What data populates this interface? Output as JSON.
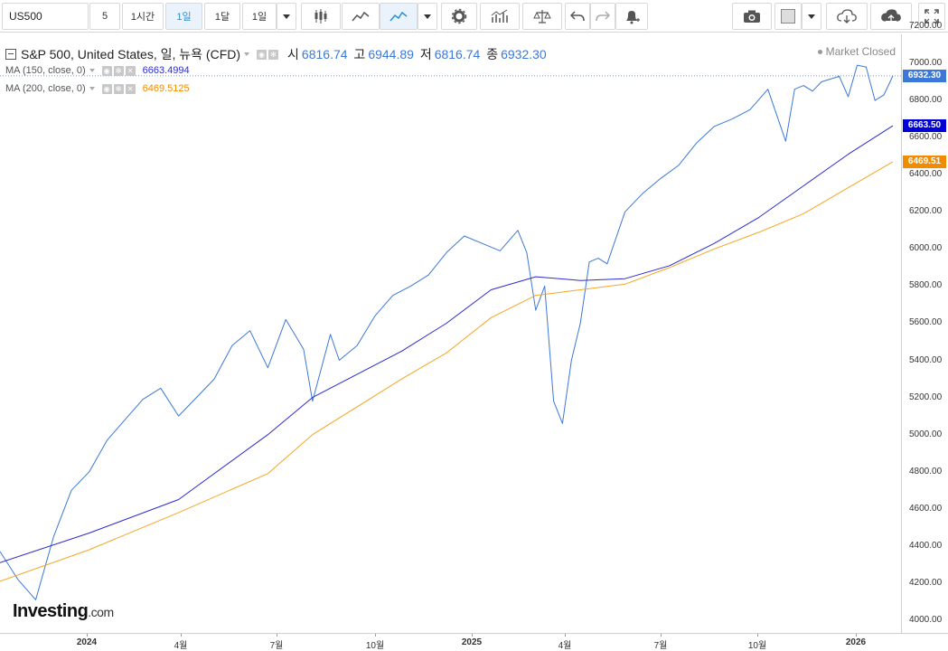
{
  "toolbar": {
    "symbol": "US500",
    "interval_5": "5",
    "interval_1h": "1시간",
    "interval_1d": "1일",
    "interval_1mo": "1달",
    "interval_menu": "1일"
  },
  "legend": {
    "title": "S&P 500, United States, 일, 뉴욕 (CFD)",
    "open_label": "시",
    "open_value": "6816.74",
    "high_label": "고",
    "high_value": "6944.89",
    "low_label": "저",
    "low_value": "6816.74",
    "close_label": "종",
    "close_value": "6932.30",
    "market_status": "Market Closed",
    "ma150_label": "MA (150, close, 0)",
    "ma150_value": "6663.4994",
    "ma200_label": "MA (200, close, 0)",
    "ma200_value": "6469.5125"
  },
  "colors": {
    "price_line": "#3c78d8",
    "ma150": "#2b2bd0",
    "ma200": "#f5a623",
    "price_badge": "#3c78d8",
    "ma150_badge": "#0000d8",
    "ma200_badge": "#f08c00"
  },
  "watermark": {
    "brand": "Investing",
    "suffix": ".com"
  },
  "price_axis": {
    "ticks": [
      "7200.00",
      "7000.00",
      "6800.00",
      "6600.00",
      "6400.00",
      "6200.00",
      "6000.00",
      "5800.00",
      "5600.00",
      "5400.00",
      "5200.00",
      "5000.00",
      "4800.00",
      "4600.00",
      "4400.00",
      "4200.00",
      "4000.00"
    ],
    "last_price": "6932.30",
    "ma150_badge": "6663.50",
    "ma200_badge": "6469.51"
  },
  "time_axis": {
    "labels": [
      "2024",
      "4월",
      "7월",
      "10월",
      "2025",
      "4월",
      "7월",
      "10월",
      "2026"
    ]
  },
  "icons": [
    "chevron-down-icon",
    "candlestick-icon",
    "area-chart-icon",
    "line-chart-icon",
    "gear-icon",
    "indicators-icon",
    "compare-scale-icon",
    "undo-icon",
    "redo-icon",
    "alert-bell-icon",
    "camera-icon",
    "color-box-icon",
    "cloud-download-icon",
    "cloud-upload-icon",
    "fullscreen-icon"
  ],
  "chart_data": {
    "type": "line",
    "title": "S&P 500, United States, 일, 뉴욕 (CFD)",
    "ylim": [
      4000,
      7200
    ],
    "x_labels": [
      "2024",
      "4월",
      "7월",
      "10월",
      "2025",
      "4월",
      "7월",
      "10월",
      "2026"
    ],
    "series": [
      {
        "name": "S&P 500",
        "x": [
          0.0,
          0.02,
          0.04,
          0.06,
          0.08,
          0.1,
          0.12,
          0.14,
          0.16,
          0.18,
          0.2,
          0.22,
          0.24,
          0.26,
          0.28,
          0.3,
          0.32,
          0.34,
          0.35,
          0.37,
          0.38,
          0.4,
          0.42,
          0.44,
          0.46,
          0.48,
          0.5,
          0.52,
          0.54,
          0.56,
          0.58,
          0.59,
          0.6,
          0.61,
          0.62,
          0.63,
          0.64,
          0.65,
          0.66,
          0.67,
          0.68,
          0.7,
          0.72,
          0.74,
          0.76,
          0.78,
          0.8,
          0.82,
          0.84,
          0.86,
          0.88,
          0.89,
          0.9,
          0.91,
          0.92,
          0.94,
          0.95,
          0.96,
          0.97,
          0.98,
          0.99,
          1.0
        ],
        "values": [
          4370,
          4220,
          4110,
          4450,
          4700,
          4800,
          4970,
          5080,
          5190,
          5250,
          5100,
          5200,
          5300,
          5480,
          5560,
          5360,
          5620,
          5460,
          5180,
          5540,
          5400,
          5480,
          5640,
          5750,
          5800,
          5860,
          5980,
          6070,
          6030,
          5990,
          6100,
          5980,
          5670,
          5800,
          5180,
          5060,
          5400,
          5600,
          5930,
          5950,
          5920,
          6200,
          6300,
          6380,
          6450,
          6570,
          6660,
          6700,
          6750,
          6860,
          6580,
          6860,
          6880,
          6850,
          6900,
          6930,
          6820,
          6990,
          6980,
          6800,
          6830,
          6932.3
        ]
      },
      {
        "name": "MA (150, close, 0)",
        "x": [
          0.0,
          0.1,
          0.2,
          0.3,
          0.35,
          0.45,
          0.5,
          0.55,
          0.6,
          0.65,
          0.7,
          0.75,
          0.8,
          0.85,
          0.9,
          0.95,
          1.0
        ],
        "values": [
          4310,
          4470,
          4650,
          5000,
          5200,
          5450,
          5600,
          5780,
          5850,
          5830,
          5840,
          5910,
          6030,
          6170,
          6340,
          6510,
          6663.5
        ]
      },
      {
        "name": "MA (200, close, 0)",
        "x": [
          0.0,
          0.1,
          0.2,
          0.3,
          0.35,
          0.45,
          0.5,
          0.55,
          0.6,
          0.65,
          0.7,
          0.75,
          0.8,
          0.85,
          0.9,
          0.95,
          1.0
        ],
        "values": [
          4210,
          4380,
          4580,
          4790,
          5000,
          5300,
          5440,
          5630,
          5750,
          5780,
          5810,
          5900,
          6000,
          6090,
          6190,
          6330,
          6469.51
        ]
      }
    ]
  }
}
